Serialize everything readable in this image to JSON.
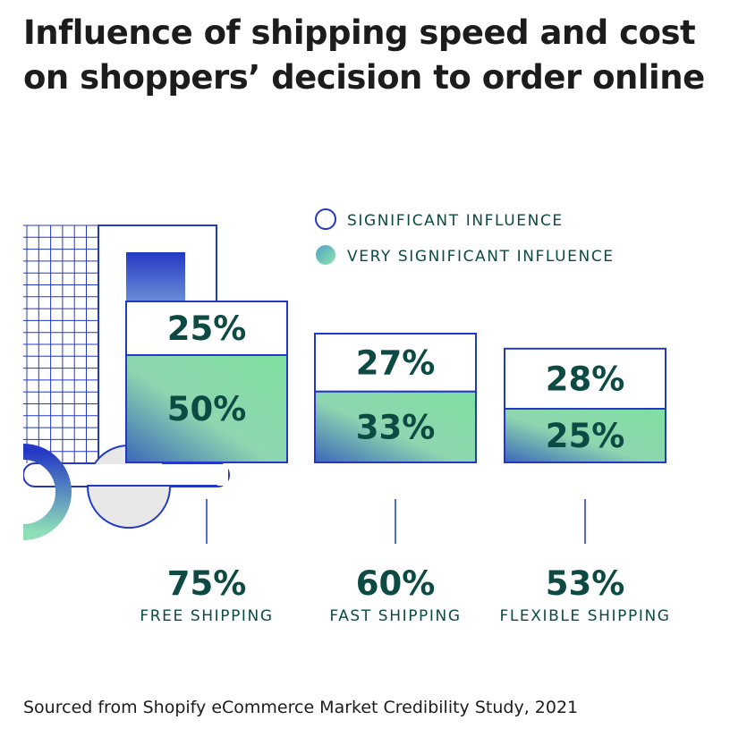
{
  "title": "Influence of shipping speed and cost on shoppers’ decision to order online",
  "source": "Sourced from Shopify eCommerce Market Credibility Study, 2021",
  "colors": {
    "outline": "#2338c4",
    "text": "#0d4a44",
    "gradient_light": "#8fe0a8",
    "gradient_dark": "#3b67b8"
  },
  "chart_data": {
    "type": "bar",
    "stacked": true,
    "title": "Influence of shipping speed and cost on shoppers’ decision to order online",
    "categories": [
      "FREE SHIPPING",
      "FAST SHIPPING",
      "FLEXIBLE SHIPPING"
    ],
    "series": [
      {
        "name": "VERY SIGNIFICANT INFLUENCE",
        "values": [
          50,
          33,
          25
        ],
        "labels": [
          "50%",
          "33%",
          "25%"
        ]
      },
      {
        "name": "SIGNIFICANT INFLUENCE",
        "values": [
          25,
          27,
          28
        ],
        "labels": [
          "25%",
          "27%",
          "28%"
        ]
      }
    ],
    "totals": [
      75,
      60,
      53
    ],
    "total_labels": [
      "75%",
      "60%",
      "53%"
    ],
    "legend": {
      "position": "top-right",
      "entries": [
        "SIGNIFICANT INFLUENCE",
        "VERY SIGNIFICANT INFLUENCE"
      ]
    }
  }
}
